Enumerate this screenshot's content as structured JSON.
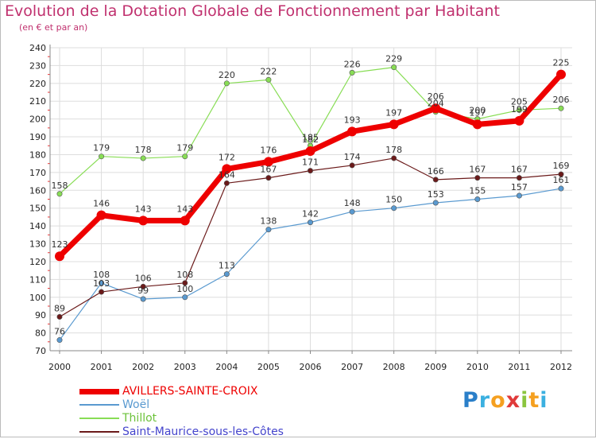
{
  "chart_data": {
    "type": "line",
    "title": "Evolution de la Dotation Globale de Fonctionnement par Habitant",
    "subtitle": "(en € et par an)",
    "xlabel": "",
    "ylabel": "",
    "x": [
      "2000",
      "2001",
      "2002",
      "2003",
      "2004",
      "2005",
      "2006",
      "2007",
      "2008",
      "2009",
      "2010",
      "2011",
      "2012"
    ],
    "ylim": [
      70,
      240
    ],
    "yticks": [
      "70",
      "80",
      "90",
      "100",
      "110",
      "120",
      "130",
      "140",
      "150",
      "160",
      "170",
      "180",
      "190",
      "200",
      "210",
      "220",
      "230",
      "240"
    ],
    "grid": true,
    "legend_position": "bottom-left",
    "series": [
      {
        "name": "Woël",
        "color": "#5a9ad0",
        "values": [
          76,
          108,
          99,
          100,
          113,
          138,
          142,
          148,
          150,
          153,
          155,
          157,
          161
        ]
      },
      {
        "name": "Saint-Maurice-sous-les-Côtes",
        "color": "#6b1a1a",
        "values": [
          89,
          103,
          106,
          108,
          164,
          167,
          171,
          174,
          178,
          166,
          167,
          167,
          169
        ]
      },
      {
        "name": "Thillot",
        "color": "#88dd55",
        "values": [
          158,
          179,
          178,
          179,
          220,
          222,
          185,
          226,
          229,
          204,
          200,
          205,
          206
        ]
      },
      {
        "name": "AVILLERS-SAINTE-CROIX",
        "color": "#ee0000",
        "values": [
          123,
          146,
          143,
          143,
          172,
          176,
          182,
          193,
          197,
          206,
          197,
          199,
          225
        ]
      }
    ],
    "data_labels": {
      "Woël": [
        "76",
        "108",
        "99",
        "100",
        "113",
        "138",
        "142",
        "148",
        "150",
        "153",
        "155",
        "157",
        "161"
      ],
      "Saint-Maurice-sous-les-Côtes": [
        "89",
        "103",
        "106",
        "108",
        "164",
        "167",
        "171",
        "174",
        "178",
        "166",
        "167",
        "167",
        "169"
      ],
      "Thillot": [
        "158",
        "179",
        "178",
        "179",
        "220",
        "222",
        "185",
        "226",
        "229",
        "204",
        "200",
        "205",
        "206"
      ],
      "AVILLERS-SAINTE-CROIX": [
        "123",
        "146",
        "143",
        "143",
        "172",
        "176",
        "182",
        "193",
        "197",
        "206",
        "197",
        "199",
        "225"
      ]
    }
  },
  "legend": {
    "items": [
      {
        "label": "AVILLERS-SAINTE-CROIX",
        "color": "#ee0000"
      },
      {
        "label": "Woël",
        "color": "#5a9ad0"
      },
      {
        "label": "Thillot",
        "color": "#88dd55"
      },
      {
        "label": "Saint-Maurice-sous-les-Côtes",
        "color": "#6b1a1a"
      }
    ]
  },
  "logo": {
    "letters": [
      "P",
      "r",
      "o",
      "x",
      "i",
      "t",
      "i"
    ],
    "colors": [
      "#2a7fc9",
      "#3bb0e0",
      "#f5a020",
      "#e03a3a",
      "#8bc53f",
      "#f5a020",
      "#3bb0e0"
    ]
  }
}
